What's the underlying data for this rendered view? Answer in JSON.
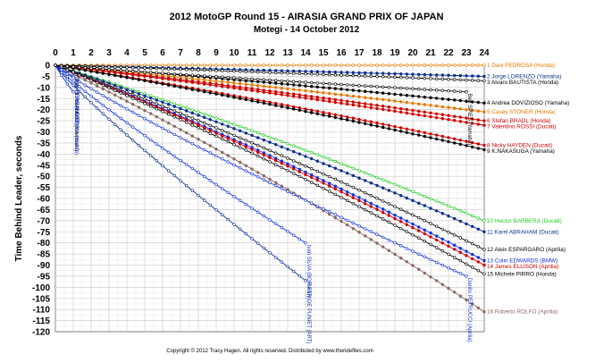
{
  "chart_data": {
    "type": "line",
    "title": "2012 MotoGP Round 15 - AIRASIA GRAND PRIX OF JAPAN",
    "subtitle": "Motegi - 14 October 2012",
    "xlabel": "",
    "ylabel": "Time Behind Leader, seconds",
    "xlim": [
      0,
      24
    ],
    "ylim": [
      -120,
      0
    ],
    "x_ticks": [
      "0",
      "1",
      "2",
      "3",
      "4",
      "5",
      "6",
      "7",
      "8",
      "9",
      "10",
      "11",
      "12",
      "13",
      "14",
      "15",
      "16",
      "17",
      "18",
      "19",
      "20",
      "21",
      "22",
      "23",
      "24"
    ],
    "y_ticks": [
      "0",
      "-5",
      "-10",
      "-15",
      "-20",
      "-25",
      "-30",
      "-35",
      "-40",
      "-45",
      "-50",
      "-55",
      "-60",
      "-65",
      "-70",
      "-75",
      "-80",
      "-85",
      "-90",
      "-95",
      "-100",
      "-105",
      "-110",
      "-115",
      "-120"
    ],
    "grid": true,
    "copyright": "Copyright © 2012 Tracy Hagen. All rights reserved. Distributed by www.theridefiles.com",
    "series": [
      {
        "name": "1 Dani PEDROSA (Honda)",
        "color": "#e87800",
        "end_lap": 24,
        "final": 0,
        "marker": "open"
      },
      {
        "name": "2 Jorge LORENZO (Yamaha)",
        "color": "#0b2f8f",
        "end_lap": 24,
        "final": -5,
        "marker": "filled"
      },
      {
        "name": "3 Alvaro BAUTISTA (Honda)",
        "color": "#000000",
        "end_lap": 24,
        "final": -7,
        "marker": "open"
      },
      {
        "name": "4 Andrea DOVIZIOSO (Yamaha)",
        "color": "#000000",
        "end_lap": 24,
        "final": -17,
        "marker": "filled"
      },
      {
        "name": "5 Casey STONER (Honda)",
        "color": "#e87800",
        "end_lap": 24,
        "final": -21,
        "marker": "filled"
      },
      {
        "name": "6 Stefan BRADL (Honda)",
        "color": "#d00000",
        "end_lap": 24,
        "final": -25,
        "marker": "filled"
      },
      {
        "name": "7 Valentino ROSSI (Ducati)",
        "color": "#d00000",
        "end_lap": 24,
        "final": -27,
        "marker": "filled"
      },
      {
        "name": "8 Nicky HAYDEN (Ducati)",
        "color": "#d00000",
        "end_lap": 24,
        "final": -36,
        "marker": "filled"
      },
      {
        "name": "9 K.NAKASUGA (Yamaha)",
        "color": "#000000",
        "end_lap": 24,
        "final": -38,
        "marker": "filled"
      },
      {
        "name": "10 Hector BARBERA (Ducati)",
        "color": "#1fcc1f",
        "end_lap": 24,
        "final": -70,
        "marker": "open"
      },
      {
        "name": "11 Karel ABRAHAM (Ducati)",
        "color": "#0b2f8f",
        "end_lap": 24,
        "final": -75,
        "marker": "filled"
      },
      {
        "name": "12 Aleix ESPARGARO (Aprilia)",
        "color": "#000000",
        "end_lap": 24,
        "final": -83,
        "marker": "open"
      },
      {
        "name": "13 Colin EDWARDS (BMW)",
        "color": "#1030e0",
        "end_lap": 24,
        "final": -88,
        "marker": "filled"
      },
      {
        "name": "14 James ELLISON (Aprilia)",
        "color": "#d00000",
        "end_lap": 24,
        "final": -90,
        "marker": "filled"
      },
      {
        "name": "15 Michele PIRRO (Honda)",
        "color": "#000000",
        "end_lap": 24,
        "final": -94,
        "marker": "open"
      },
      {
        "name": "16 Roberto ROLFO (Aprilia)",
        "color": "#8b6b63",
        "end_lap": 24,
        "final": -111,
        "marker": "filled"
      }
    ],
    "retired": [
      {
        "name": "Yonny HERNANDEZ (Kawasaki)",
        "color": "#000000",
        "end_lap": 1,
        "final": -3
      },
      {
        "name": "Toni ELIAS (Ducati)",
        "color": "#1030e0",
        "end_lap": 1,
        "final": -5
      },
      {
        "name": "Hiroshi AOYAMA (Honda)",
        "color": "#1030e0",
        "end_lap": 1,
        "final": -12
      },
      {
        "name": "Ivan SILVA (BQR-FTR)",
        "color": "#1030e0",
        "end_lap": 14,
        "final": -80
      },
      {
        "name": "Danilo PETRUCCI (Aprilia)",
        "color": "#1030e0",
        "end_lap": 23,
        "final": -95
      },
      {
        "name": "Randy DE PUNIET (ART)",
        "color": "#0b2f8f",
        "end_lap": 14,
        "final": -97
      },
      {
        "name": "Ben SPIES (Yamaha)",
        "color": "#000000",
        "end_lap": 23,
        "final": -12
      }
    ]
  }
}
